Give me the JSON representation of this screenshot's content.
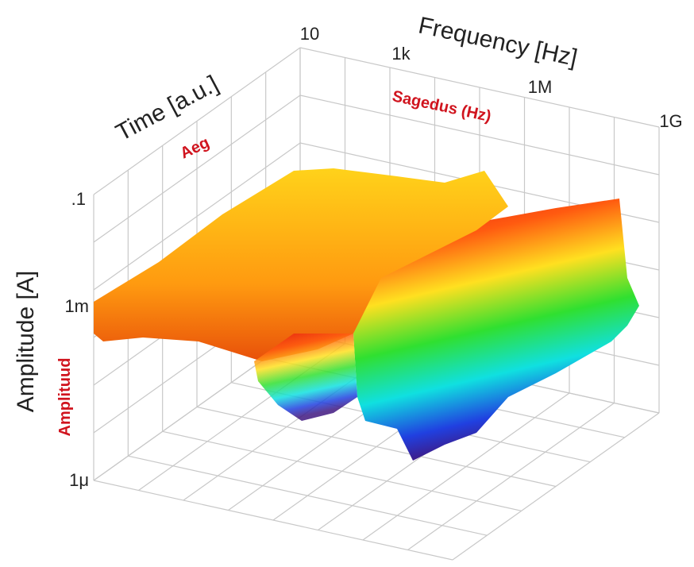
{
  "labels": {
    "frequency_axis": "Frequency [Hz]",
    "time_axis": "Time [a.u.]",
    "amplitude_axis": "Amplitude [A]",
    "frequency_translation": "Sagedus (Hz)",
    "time_translation": "Aeg",
    "amplitude_translation": "Amplituud"
  },
  "frequency_ticks": [
    "10",
    "1k",
    "1M",
    "1G"
  ],
  "amplitude_ticks": [
    ".1",
    "1m",
    "1μ"
  ]
}
